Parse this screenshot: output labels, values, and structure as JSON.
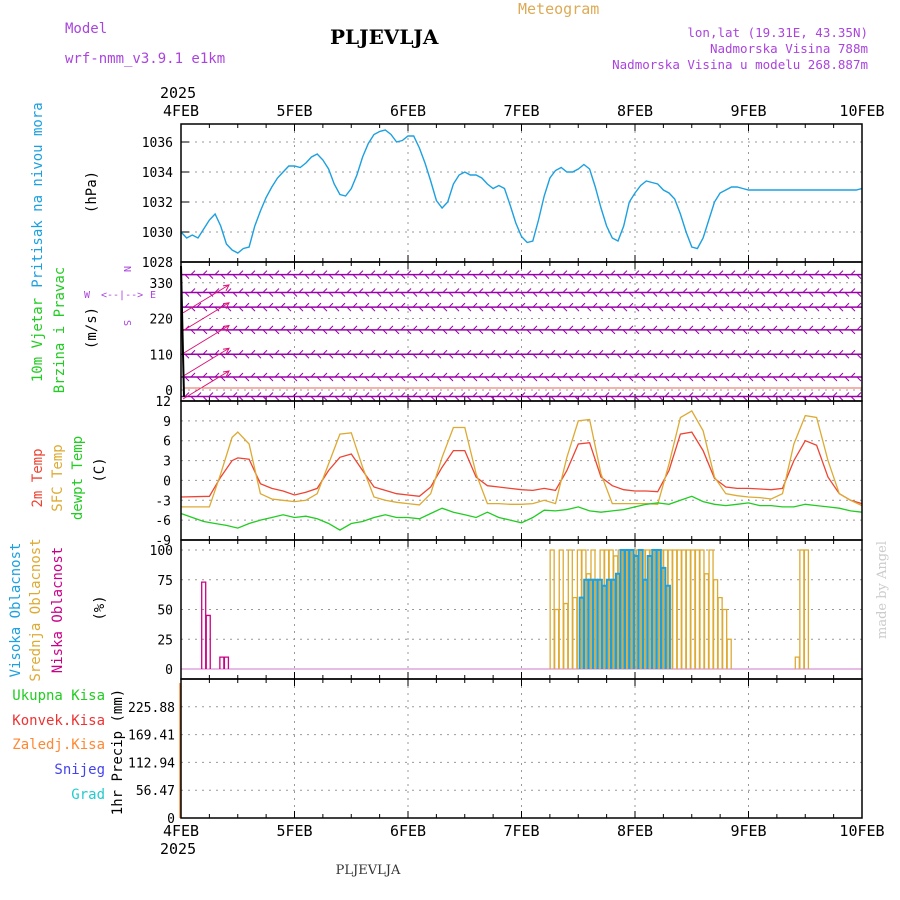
{
  "header": {
    "model_label": "Model",
    "model_name": "wrf-nmm_v3.9.1 e1km",
    "station": "PLJEVLJA",
    "product": "Meteogram",
    "coords": "lon,lat (19.31E, 43.35N)",
    "altitude": "Nadmorska Visina 788m",
    "model_altitude": "Nadmorska Visina u modelu 268.887m",
    "footer_station": "PLJEVLJA",
    "credit": "made by Angel"
  },
  "colors": {
    "pressure": "#1ca0e0",
    "wind_text": "#22cc22",
    "wind_barb": "#9900aa",
    "wind_arrow": "#dd1177",
    "temp2m": "#ee4433",
    "sfc": "#ddaa33",
    "dewpt": "#22cc22",
    "cloud_high": "#1ca0e0",
    "cloud_mid": "#ddaa33",
    "cloud_low": "#cc0088",
    "precip_total": "#22cc22",
    "precip_conv": "#ee3333",
    "precip_frozen": "#ff8833",
    "precip_snow": "#4444ee",
    "precip_hail": "#22cccc"
  },
  "chart_data": [
    {
      "type": "line",
      "panel": "pressure",
      "title": "Pritisak na nivou mora",
      "ylabel": "(hPa)",
      "x_year": "2025",
      "x_ticks": [
        "4FEB",
        "5FEB",
        "6FEB",
        "7FEB",
        "8FEB",
        "9FEB",
        "10FEB"
      ],
      "xlim": [
        0,
        6
      ],
      "ylim": [
        1028,
        1037.2
      ],
      "y_ticks": [
        1028,
        1030,
        1032,
        1034,
        1036
      ],
      "grid": true,
      "series": [
        {
          "x": [
            0,
            0.05,
            0.1,
            0.15,
            0.2,
            0.25,
            0.3,
            0.35,
            0.4,
            0.45,
            0.5,
            0.55,
            0.6,
            0.65,
            0.7,
            0.75,
            0.8,
            0.85,
            0.9,
            0.95,
            1.0,
            1.05,
            1.1,
            1.15,
            1.2,
            1.25,
            1.3,
            1.35,
            1.4,
            1.45,
            1.5,
            1.55,
            1.6,
            1.65,
            1.7,
            1.75,
            1.8,
            1.85,
            1.9,
            1.95,
            2.0,
            2.05,
            2.1,
            2.15,
            2.2,
            2.25,
            2.3,
            2.35,
            2.4,
            2.45,
            2.5,
            2.55,
            2.6,
            2.65,
            2.7,
            2.75,
            2.8,
            2.85,
            2.9,
            2.95,
            3.0,
            3.05,
            3.1,
            3.15,
            3.2,
            3.25,
            3.3,
            3.35,
            3.4,
            3.45,
            3.5,
            3.55,
            3.6,
            3.65,
            3.7,
            3.75,
            3.8,
            3.85,
            3.9,
            3.95,
            4.0,
            4.05,
            4.1,
            4.15,
            4.2,
            4.25,
            4.3,
            4.35,
            4.4,
            4.45,
            4.5,
            4.55,
            4.6,
            4.65,
            4.7,
            4.75,
            4.8,
            4.85,
            4.9,
            4.95,
            5.0,
            5.05,
            5.1,
            5.15,
            5.2,
            5.25,
            5.3,
            5.35,
            5.4,
            5.45,
            5.5,
            5.55,
            5.6,
            5.65,
            5.7,
            5.75,
            5.8,
            5.85,
            5.9,
            5.95,
            6.0
          ],
          "values": [
            1030.0,
            1029.6,
            1029.8,
            1029.6,
            1030.2,
            1030.8,
            1031.2,
            1030.4,
            1029.2,
            1028.8,
            1028.6,
            1028.9,
            1029.0,
            1030.4,
            1031.4,
            1032.3,
            1033.0,
            1033.6,
            1034.0,
            1034.4,
            1034.4,
            1034.3,
            1034.6,
            1035.0,
            1035.2,
            1034.8,
            1034.2,
            1033.2,
            1032.5,
            1032.4,
            1032.9,
            1033.8,
            1035.0,
            1035.9,
            1036.5,
            1036.7,
            1036.8,
            1036.5,
            1036.0,
            1036.1,
            1036.4,
            1036.4,
            1035.6,
            1034.6,
            1033.4,
            1032.1,
            1031.6,
            1032.0,
            1033.2,
            1033.8,
            1034.0,
            1033.8,
            1033.8,
            1033.6,
            1033.2,
            1032.9,
            1033.1,
            1032.9,
            1031.8,
            1030.6,
            1029.7,
            1029.3,
            1029.4,
            1030.8,
            1032.4,
            1033.6,
            1034.1,
            1034.3,
            1034.0,
            1034.0,
            1034.2,
            1034.5,
            1034.2,
            1033.0,
            1031.6,
            1030.4,
            1029.6,
            1029.4,
            1030.4,
            1032.0,
            1032.6,
            1033.1,
            1033.4,
            1033.3,
            1033.2,
            1032.8,
            1032.6,
            1032.2,
            1031.2,
            1030.0,
            1029.0,
            1028.9,
            1029.6,
            1030.8,
            1032.0,
            1032.6,
            1032.8,
            1033.0,
            1033.0,
            1032.9,
            1032.8,
            1032.8,
            1032.8,
            1032.8,
            1032.8,
            1032.8,
            1032.8,
            1032.8,
            1032.8,
            1032.8,
            1032.8,
            1032.8,
            1032.8,
            1032.8,
            1032.8,
            1032.8,
            1032.8,
            1032.8,
            1032.8,
            1032.8,
            1032.9
          ]
        }
      ]
    },
    {
      "type": "barbs",
      "panel": "wind",
      "title": "10m Vjetar",
      "subtitle": "Brzina i Pravac",
      "ylabel": "(m/s)",
      "compass": {
        "n": "N",
        "s": "S",
        "e": "E",
        "w": "W",
        "arrows": "<--|-->"
      },
      "ylim": [
        0,
        360
      ],
      "y_ticks": [
        0,
        110,
        220,
        330
      ],
      "levels": [
        -20,
        40,
        110,
        185,
        255,
        300,
        355
      ],
      "grid": true
    },
    {
      "type": "line",
      "panel": "temperature",
      "title": "2m Temp",
      "subtitle": "SFC Temp",
      "subtitle2": "dewpt Temp",
      "ylabel": "(C)",
      "ylim": [
        -9,
        12
      ],
      "y_ticks": [
        12,
        9,
        6,
        3,
        0,
        -3,
        -6,
        -9
      ],
      "grid": true,
      "series": [
        {
          "name": "2m Temp",
          "x": [
            0,
            0.25,
            0.35,
            0.45,
            0.5,
            0.6,
            0.7,
            0.8,
            0.9,
            1.0,
            1.1,
            1.2,
            1.3,
            1.4,
            1.5,
            1.6,
            1.7,
            1.8,
            1.9,
            2.0,
            2.1,
            2.2,
            2.3,
            2.4,
            2.5,
            2.6,
            2.7,
            2.8,
            2.9,
            3.0,
            3.1,
            3.2,
            3.3,
            3.4,
            3.5,
            3.6,
            3.7,
            3.8,
            3.9,
            4.0,
            4.1,
            4.2,
            4.3,
            4.4,
            4.5,
            4.6,
            4.7,
            4.8,
            4.9,
            5.0,
            5.1,
            5.2,
            5.3,
            5.4,
            5.5,
            5.6,
            5.7,
            5.8,
            5.9,
            6.0
          ],
          "values": [
            -2.5,
            -2.4,
            0.5,
            3.0,
            3.4,
            3.2,
            -0.5,
            -1.2,
            -1.6,
            -2.2,
            -1.8,
            -1.2,
            1.5,
            3.5,
            4.0,
            1.5,
            -1.0,
            -1.5,
            -2.0,
            -2.2,
            -2.4,
            -1.0,
            2.0,
            4.5,
            4.5,
            0.5,
            -0.8,
            -1.0,
            -1.2,
            -1.4,
            -1.5,
            -1.2,
            -1.5,
            1.5,
            5.5,
            5.7,
            0.5,
            -0.8,
            -1.4,
            -1.6,
            -1.6,
            -1.7,
            1.5,
            7.0,
            7.3,
            4.5,
            0.3,
            -1.0,
            -1.2,
            -1.2,
            -1.3,
            -1.4,
            -1.2,
            3.0,
            6.0,
            5.3,
            0.5,
            -2.0,
            -3.0,
            -3.5
          ]
        },
        {
          "name": "SFC Temp",
          "x": [
            0,
            0.25,
            0.35,
            0.45,
            0.5,
            0.6,
            0.7,
            0.8,
            0.9,
            1.0,
            1.1,
            1.2,
            1.3,
            1.4,
            1.5,
            1.6,
            1.7,
            1.8,
            1.9,
            2.0,
            2.1,
            2.2,
            2.3,
            2.4,
            2.5,
            2.6,
            2.7,
            2.8,
            2.9,
            3.0,
            3.1,
            3.2,
            3.3,
            3.4,
            3.5,
            3.6,
            3.7,
            3.8,
            3.9,
            4.0,
            4.1,
            4.2,
            4.3,
            4.4,
            4.5,
            4.6,
            4.7,
            4.8,
            4.9,
            5.0,
            5.1,
            5.2,
            5.3,
            5.4,
            5.5,
            5.6,
            5.7,
            5.8,
            5.9,
            6.0
          ],
          "values": [
            -4.0,
            -4.0,
            1.0,
            6.5,
            7.3,
            5.5,
            -2.0,
            -2.8,
            -3.0,
            -3.2,
            -3.0,
            -2.0,
            2.5,
            7.0,
            7.2,
            2.0,
            -2.5,
            -3.0,
            -3.3,
            -3.5,
            -3.7,
            -2.0,
            3.5,
            8.0,
            8.0,
            1.0,
            -3.5,
            -3.5,
            -3.6,
            -3.6,
            -3.5,
            -3.0,
            -3.5,
            3.5,
            9.0,
            9.2,
            1.0,
            -3.5,
            -3.5,
            -3.5,
            -3.5,
            -3.6,
            2.5,
            9.5,
            10.5,
            7.5,
            0.5,
            -2.0,
            -2.3,
            -2.5,
            -2.6,
            -2.8,
            -2.0,
            5.5,
            9.8,
            9.5,
            3.0,
            -2.0,
            -3.0,
            -3.8
          ]
        },
        {
          "name": "dewpt Temp",
          "x": [
            0,
            0.2,
            0.3,
            0.4,
            0.5,
            0.6,
            0.7,
            0.8,
            0.9,
            1.0,
            1.1,
            1.2,
            1.3,
            1.4,
            1.5,
            1.6,
            1.7,
            1.8,
            1.9,
            2.0,
            2.1,
            2.2,
            2.3,
            2.4,
            2.5,
            2.6,
            2.7,
            2.8,
            2.9,
            3.0,
            3.1,
            3.2,
            3.3,
            3.4,
            3.5,
            3.6,
            3.7,
            3.8,
            3.9,
            4.0,
            4.1,
            4.2,
            4.3,
            4.4,
            4.5,
            4.6,
            4.7,
            4.8,
            4.9,
            5.0,
            5.1,
            5.2,
            5.3,
            5.4,
            5.5,
            5.6,
            5.7,
            5.8,
            5.9,
            6.0
          ],
          "values": [
            -5.0,
            -6.2,
            -6.5,
            -6.8,
            -7.2,
            -6.5,
            -6.0,
            -5.6,
            -5.2,
            -5.6,
            -5.4,
            -5.8,
            -6.5,
            -7.5,
            -6.5,
            -6.2,
            -5.6,
            -5.2,
            -5.6,
            -5.6,
            -5.8,
            -5.0,
            -4.2,
            -4.8,
            -5.2,
            -5.6,
            -4.8,
            -5.6,
            -6.0,
            -6.4,
            -5.6,
            -4.5,
            -4.6,
            -4.4,
            -4.0,
            -4.6,
            -4.8,
            -4.6,
            -4.4,
            -4.0,
            -3.6,
            -3.4,
            -3.6,
            -3.0,
            -2.4,
            -3.2,
            -3.6,
            -3.8,
            -3.6,
            -3.4,
            -3.8,
            -3.8,
            -4.0,
            -4.0,
            -3.6,
            -3.8,
            -4.0,
            -4.2,
            -4.6,
            -4.8
          ]
        }
      ]
    },
    {
      "type": "bar",
      "panel": "clouds",
      "title": "Visoka Oblacnost",
      "subtitle": "Srednja Oblacnost",
      "subtitle2": "Niska Oblacnost",
      "ylabel": "(%)",
      "ylim": [
        0,
        100
      ],
      "y_ticks": [
        0,
        25,
        50,
        75,
        100
      ],
      "grid": true,
      "series": [
        {
          "name": "Niska Oblacnost",
          "x": [
            0.2,
            0.24,
            0.36,
            0.4
          ],
          "values": [
            73,
            45,
            10,
            10
          ]
        },
        {
          "name": "Srednja Oblacnost",
          "x": [
            3.27,
            3.31,
            3.35,
            3.39,
            3.43,
            3.47,
            3.51,
            3.55,
            3.59,
            3.63,
            3.67,
            3.71,
            3.75,
            3.79,
            3.83,
            3.87,
            3.91,
            3.95,
            3.99,
            4.03,
            4.07,
            4.11,
            4.15,
            4.19,
            4.23,
            4.27,
            4.31,
            4.35,
            4.39,
            4.43,
            4.47,
            4.51,
            4.55,
            4.59,
            4.63,
            4.67,
            4.71,
            4.75,
            4.79,
            4.83,
            5.43,
            5.47,
            5.51
          ],
          "values": [
            100,
            50,
            100,
            55,
            100,
            60,
            100,
            100,
            80,
            100,
            75,
            100,
            100,
            100,
            95,
            100,
            100,
            100,
            100,
            100,
            100,
            100,
            100,
            100,
            100,
            100,
            100,
            100,
            100,
            100,
            100,
            100,
            100,
            100,
            80,
            100,
            75,
            60,
            50,
            25,
            10,
            100,
            100
          ]
        },
        {
          "name": "Visoka Oblacnost",
          "x": [
            3.53,
            3.57,
            3.61,
            3.65,
            3.69,
            3.73,
            3.77,
            3.81,
            3.85,
            3.89,
            3.93,
            3.97,
            4.01,
            4.05,
            4.09,
            4.13,
            4.17,
            4.21,
            4.25,
            4.29
          ],
          "values": [
            60,
            75,
            75,
            75,
            75,
            70,
            75,
            75,
            80,
            100,
            100,
            100,
            95,
            100,
            75,
            95,
            100,
            100,
            85,
            70
          ]
        }
      ]
    },
    {
      "type": "bar",
      "panel": "precipitation",
      "legend": [
        "Ukupna Kisa",
        "Konvek.Kisa",
        "Zaledj.Kisa",
        "Snijeg",
        "Grad"
      ],
      "ylabel": "1hr Precip (mm)",
      "ylim": [
        0,
        282.35
      ],
      "y_ticks": [
        "0",
        "56.47",
        "112.94",
        "169.41",
        "225.88"
      ],
      "grid": true,
      "series": [
        {
          "name": "Ukupna Kisa",
          "x": [],
          "values": []
        }
      ]
    }
  ]
}
